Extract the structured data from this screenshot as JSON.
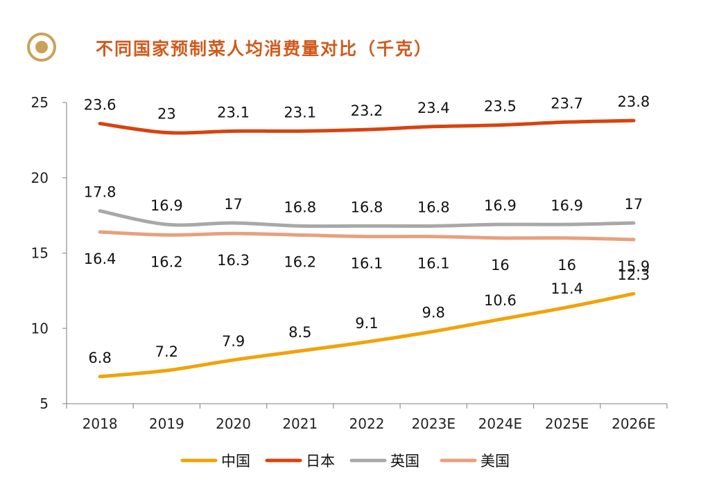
{
  "title": "不同国家预制菜人均消费量对比（千克）",
  "chart_data": {
    "type": "line",
    "categories": [
      "2018",
      "2019",
      "2020",
      "2021",
      "2022",
      "2023E",
      "2024E",
      "2025E",
      "2026E"
    ],
    "ylim": [
      5,
      25
    ],
    "yticks": [
      5,
      10,
      15,
      20,
      25
    ],
    "grid": false,
    "legend_position": "bottom",
    "series": [
      {
        "name": "中国",
        "color": "#f0a30a",
        "values": [
          6.8,
          7.2,
          7.9,
          8.5,
          9.1,
          9.8,
          10.6,
          11.4,
          12.3
        ],
        "labels": [
          "6.8",
          "7.2",
          "7.9",
          "8.5",
          "9.1",
          "9.8",
          "10.6",
          "11.4",
          "12.3"
        ],
        "label_position": "above"
      },
      {
        "name": "日本",
        "color": "#d9420e",
        "values": [
          23.6,
          23.0,
          23.1,
          23.1,
          23.2,
          23.4,
          23.5,
          23.7,
          23.8
        ],
        "labels": [
          "23.6",
          "23",
          "23.1",
          "23.1",
          "23.2",
          "23.4",
          "23.5",
          "23.7",
          "23.8"
        ],
        "label_position": "above"
      },
      {
        "name": "英国",
        "color": "#a8a8a8",
        "values": [
          17.8,
          16.9,
          17.0,
          16.8,
          16.8,
          16.8,
          16.9,
          16.9,
          17.0
        ],
        "labels": [
          "17.8",
          "16.9",
          "17",
          "16.8",
          "16.8",
          "16.8",
          "16.9",
          "16.9",
          "17"
        ],
        "label_position": "above"
      },
      {
        "name": "美国",
        "color": "#e8a07e",
        "values": [
          16.4,
          16.2,
          16.3,
          16.2,
          16.1,
          16.1,
          16.0,
          16.0,
          15.9
        ],
        "labels": [
          "16.4",
          "16.2",
          "16.3",
          "16.2",
          "16.1",
          "16.1",
          "16",
          "16",
          "15.9"
        ],
        "label_position": "below"
      }
    ]
  },
  "icon_colors": {
    "ring": "#c9a25a",
    "dot": "#c9a25a"
  }
}
